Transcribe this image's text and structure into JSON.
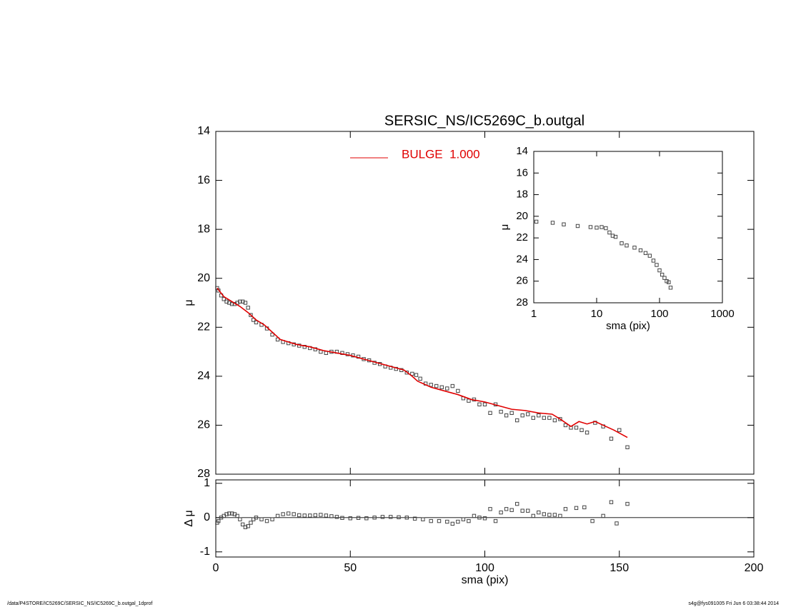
{
  "chart_data": [
    {
      "type": "scatter",
      "title": "SERSIC_NS/IC5269C_b.outgal",
      "y_label": "μ",
      "xlim": [
        0,
        200
      ],
      "xticks": [
        0,
        50,
        100,
        150,
        200
      ],
      "ylim": [
        28,
        14
      ],
      "yticks": [
        14,
        16,
        18,
        20,
        22,
        24,
        26,
        28
      ],
      "series": [
        {
          "color": "#444444",
          "marker": "square",
          "x": [
            0.5,
            1,
            2,
            3,
            4,
            5,
            6,
            7,
            8,
            9,
            10,
            11,
            12,
            13,
            14,
            15,
            17,
            19,
            21,
            23,
            25,
            27,
            29,
            31,
            33,
            35,
            37,
            39,
            41,
            43,
            45,
            47,
            49,
            51,
            53,
            55,
            57,
            59,
            61,
            63,
            65,
            67,
            69,
            71,
            73,
            74.5,
            76,
            78,
            80,
            82,
            84,
            86,
            88,
            90,
            92,
            94,
            96,
            98,
            100,
            102,
            104,
            106,
            108,
            110,
            112,
            114,
            116,
            118,
            120,
            122,
            124,
            126,
            128,
            130,
            132,
            134,
            136,
            138,
            141,
            144,
            147,
            150,
            153
          ],
          "values": [
            20.4,
            20.5,
            20.7,
            20.85,
            20.95,
            21.0,
            21.05,
            21.05,
            21.0,
            20.95,
            20.95,
            21.0,
            21.2,
            21.5,
            21.7,
            21.8,
            21.9,
            22.05,
            22.3,
            22.5,
            22.6,
            22.65,
            22.7,
            22.75,
            22.8,
            22.85,
            22.9,
            23.0,
            23.05,
            23.0,
            23.0,
            23.05,
            23.1,
            23.15,
            23.2,
            23.3,
            23.35,
            23.45,
            23.5,
            23.6,
            23.65,
            23.7,
            23.75,
            23.85,
            23.9,
            23.95,
            24.1,
            24.3,
            24.35,
            24.4,
            24.45,
            24.5,
            24.4,
            24.6,
            24.9,
            25.0,
            24.95,
            25.15,
            25.15,
            25.5,
            25.15,
            25.45,
            25.6,
            25.5,
            25.8,
            25.6,
            25.55,
            25.7,
            25.6,
            25.7,
            25.7,
            25.8,
            25.75,
            26.0,
            26.1,
            26.1,
            26.2,
            26.3,
            25.9,
            26.05,
            26.55,
            26.2,
            26.9
          ]
        },
        {
          "name": "BULGE  1.000",
          "color": "#e00000",
          "marker": "line",
          "x": [
            0.5,
            3,
            6,
            9,
            12,
            15,
            18,
            21,
            24,
            27,
            30,
            35,
            40,
            45,
            50,
            55,
            60,
            65,
            70,
            73,
            75,
            80,
            85,
            90,
            95,
            100,
            105,
            110,
            115,
            120,
            125,
            128,
            132,
            135,
            138,
            141,
            144,
            148,
            153
          ],
          "values": [
            20.4,
            20.75,
            20.95,
            21.15,
            21.4,
            21.7,
            21.9,
            22.2,
            22.5,
            22.6,
            22.7,
            22.8,
            22.95,
            23.05,
            23.15,
            23.3,
            23.45,
            23.6,
            23.75,
            24.0,
            24.2,
            24.45,
            24.6,
            24.75,
            24.95,
            25.05,
            25.2,
            25.35,
            25.4,
            25.5,
            25.55,
            25.75,
            26.05,
            25.85,
            25.95,
            25.85,
            26.0,
            26.2,
            26.5
          ]
        }
      ]
    },
    {
      "type": "scatter",
      "x_label": "sma (pix)",
      "y_label": "μ",
      "log_x": true,
      "xlim": [
        1,
        1000
      ],
      "xticks": [
        1,
        10,
        100,
        1000
      ],
      "ylim": [
        28,
        14
      ],
      "yticks": [
        14,
        16,
        18,
        20,
        22,
        24,
        26,
        28
      ],
      "series": [
        {
          "color": "#444444",
          "marker": "square",
          "x": [
            1.1,
            2,
            3,
            5,
            8,
            10,
            12,
            14,
            16,
            18,
            20,
            25,
            30,
            40,
            50,
            60,
            70,
            80,
            90,
            100,
            110,
            120,
            130,
            140,
            150
          ],
          "values": [
            20.5,
            20.6,
            20.75,
            20.9,
            21.0,
            21.05,
            21.0,
            21.1,
            21.5,
            21.8,
            21.9,
            22.5,
            22.7,
            22.9,
            23.15,
            23.4,
            23.65,
            24.1,
            24.5,
            25.0,
            25.4,
            25.7,
            26.0,
            26.1,
            26.6
          ]
        }
      ]
    },
    {
      "type": "scatter",
      "x_label": "sma (pix)",
      "y_label": "Δ μ",
      "zero_line": true,
      "xlim": [
        0,
        200
      ],
      "xticks": [
        0,
        50,
        100,
        150,
        200
      ],
      "ylim": [
        -1.15,
        1.1
      ],
      "yticks": [
        -1,
        0,
        1
      ],
      "series": [
        {
          "color": "#444444",
          "marker": "square",
          "x": [
            0.5,
            1,
            2,
            3,
            4,
            5,
            6,
            7,
            8,
            9,
            10,
            11,
            12,
            13,
            14,
            15,
            17,
            19,
            21,
            23,
            25,
            27,
            29,
            31,
            33,
            35,
            37,
            39,
            41,
            43,
            45,
            47,
            50,
            53,
            56,
            59,
            62,
            65,
            68,
            71,
            74,
            77,
            80,
            83,
            86,
            88,
            90,
            92,
            94,
            96,
            98,
            100,
            102,
            104,
            106,
            108,
            110,
            112,
            114,
            116,
            118,
            120,
            122,
            124,
            126,
            128,
            130,
            134,
            137,
            140,
            144,
            147,
            149,
            153
          ],
          "values": [
            -0.15,
            -0.1,
            0,
            0.05,
            0.1,
            0.12,
            0.12,
            0.1,
            0.05,
            -0.05,
            -0.2,
            -0.28,
            -0.25,
            -0.15,
            -0.05,
            0,
            -0.05,
            -0.1,
            -0.05,
            0.05,
            0.1,
            0.12,
            0.1,
            0.07,
            0.06,
            0.06,
            0.07,
            0.08,
            0.06,
            0.04,
            0.02,
            -0.01,
            -0.02,
            -0.01,
            -0.02,
            0,
            0.02,
            0.02,
            0.01,
            0,
            -0.03,
            -0.05,
            -0.1,
            -0.1,
            -0.12,
            -0.18,
            -0.12,
            -0.05,
            -0.1,
            0.05,
            0.0,
            -0.02,
            0.25,
            -0.1,
            0.15,
            0.25,
            0.22,
            0.4,
            0.2,
            0.2,
            0.05,
            0.15,
            0.1,
            0.08,
            0.08,
            0.05,
            0.25,
            0.28,
            0.3,
            -0.1,
            0.05,
            0.45,
            -0.17,
            0.4
          ]
        }
      ]
    }
  ],
  "footer": {
    "left": "/data/P4STORE/IC5269C/SERSIC_NS/IC5269C_b.outgal_1dprof",
    "right": "s4g@fys091005  Fri Jun  6 03:38:44 2014"
  }
}
